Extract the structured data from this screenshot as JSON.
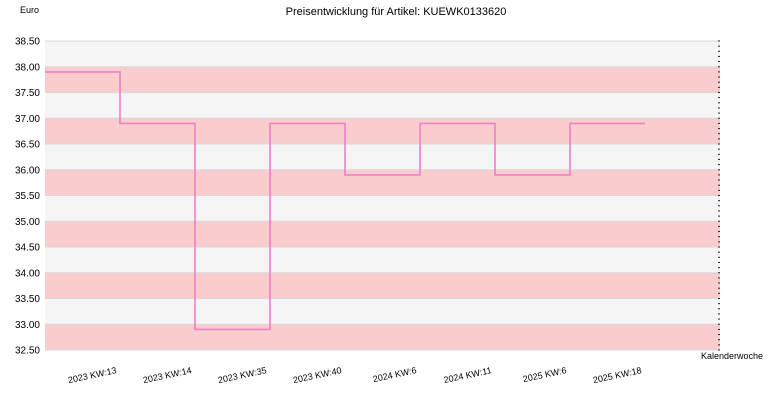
{
  "chart_data": {
    "type": "line",
    "step": true,
    "title": "Preisentwicklung für Artikel: KUEWK0133620",
    "ylabel": "Euro",
    "xlabel": "Kalenderwoche",
    "categories": [
      "2023 KW:13",
      "2023 KW:14",
      "2023 KW:35",
      "2023 KW:40",
      "2024 KW:6",
      "2024 KW:11",
      "2025 KW:6",
      "2025 KW:18"
    ],
    "series": [
      {
        "values": [
          37.9,
          36.9,
          32.9,
          36.9,
          35.9,
          36.9,
          35.9,
          36.9
        ]
      }
    ],
    "ylim": [
      32.5,
      38.5
    ],
    "yticks": [
      "32.50",
      "33.00",
      "33.50",
      "34.00",
      "34.50",
      "35.00",
      "35.50",
      "36.00",
      "36.50",
      "37.00",
      "37.50",
      "38.00",
      "38.50"
    ],
    "grid": true,
    "band_colors": [
      "#f9cdcd",
      "#f5f5f5"
    ],
    "line_color": "#ee7fc9"
  }
}
